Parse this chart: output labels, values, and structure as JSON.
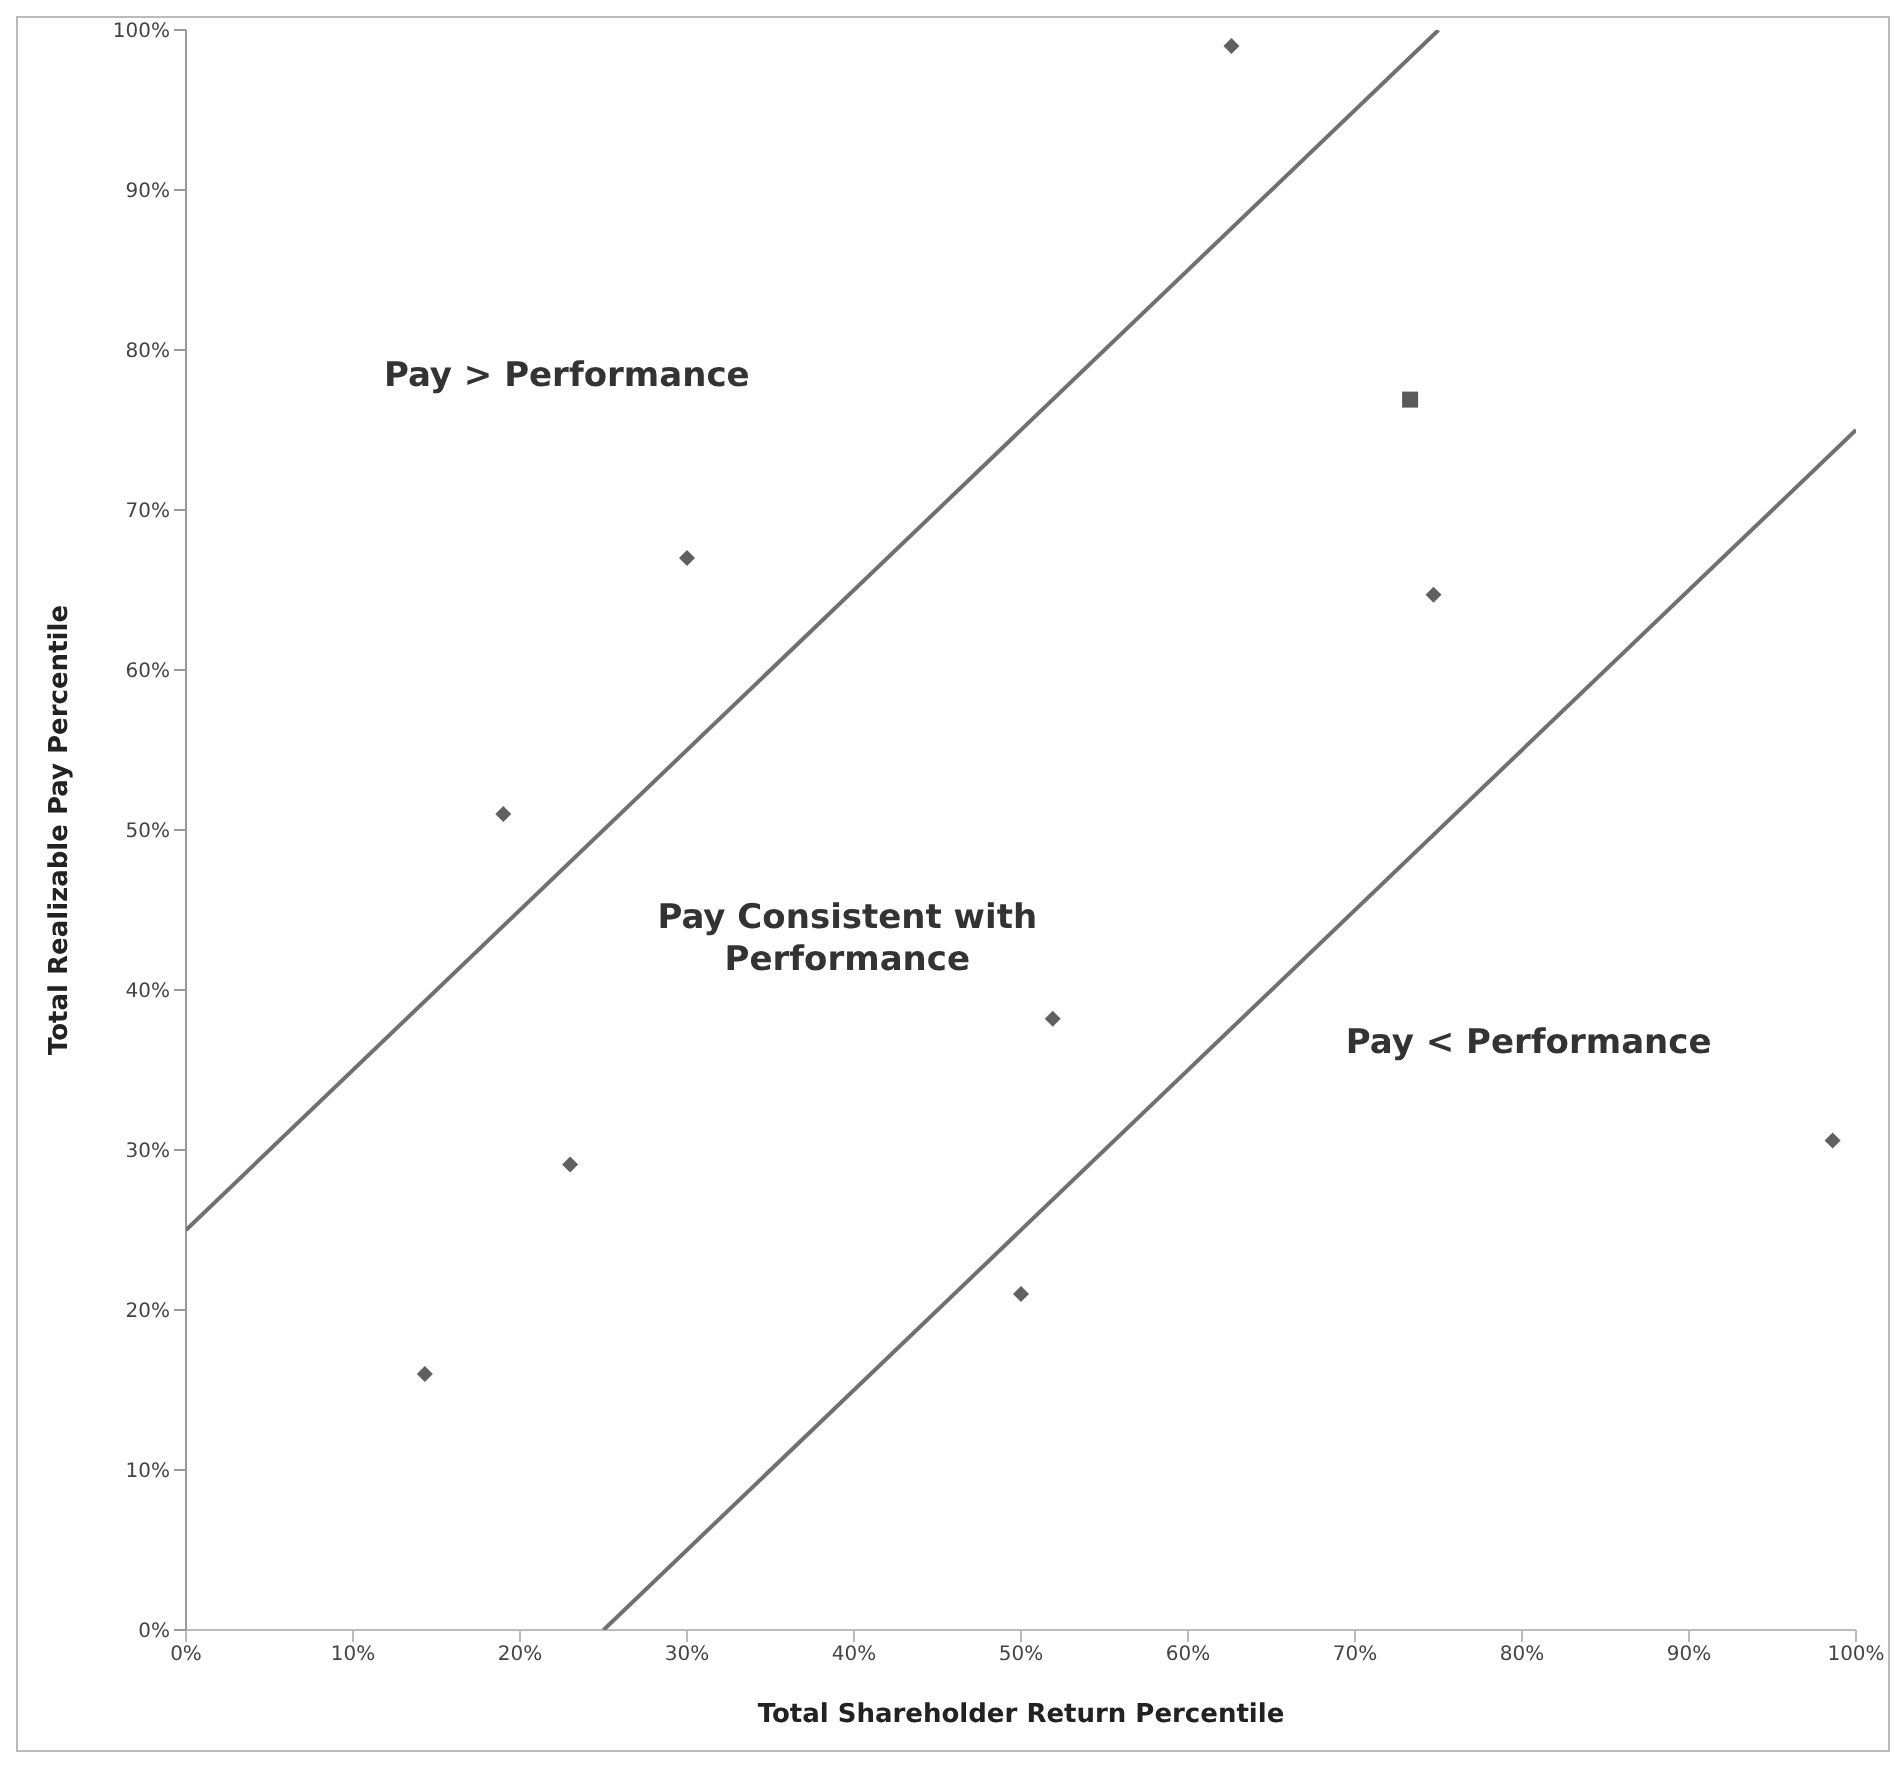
{
  "chart_data": {
    "type": "scatter",
    "xlabel": "Total Shareholder Return Percentile",
    "ylabel": "Total Realizable Pay  Percentile",
    "xlim": [
      0,
      100
    ],
    "ylim": [
      0,
      100
    ],
    "xticks": [
      {
        "value": 0,
        "label": "0%"
      },
      {
        "value": 10,
        "label": "10%"
      },
      {
        "value": 20,
        "label": "20%"
      },
      {
        "value": 30,
        "label": "30%"
      },
      {
        "value": 40,
        "label": "40%"
      },
      {
        "value": 50,
        "label": "50%"
      },
      {
        "value": 60,
        "label": "60%"
      },
      {
        "value": 70,
        "label": "70%"
      },
      {
        "value": 80,
        "label": "80%"
      },
      {
        "value": 90,
        "label": "90%"
      },
      {
        "value": 100,
        "label": "100%"
      }
    ],
    "yticks": [
      {
        "value": 0,
        "label": "0%"
      },
      {
        "value": 10,
        "label": "10%"
      },
      {
        "value": 20,
        "label": "20%"
      },
      {
        "value": 30,
        "label": "30%"
      },
      {
        "value": 40,
        "label": "40%"
      },
      {
        "value": 50,
        "label": "50%"
      },
      {
        "value": 60,
        "label": "60%"
      },
      {
        "value": 70,
        "label": "70%"
      },
      {
        "value": 80,
        "label": "80%"
      },
      {
        "value": 90,
        "label": "90%"
      },
      {
        "value": 100,
        "label": "100%"
      }
    ],
    "series": [
      {
        "marker": "diamond",
        "color": "#606060",
        "x": [
          19,
          30,
          62.6,
          14.3,
          23,
          51.9,
          50,
          98.6,
          74.7
        ],
        "values": [
          51,
          67,
          99,
          16,
          29.1,
          38.2,
          21,
          30.6,
          64.7
        ]
      },
      {
        "marker": "square",
        "color": "#5a5a5a",
        "x": [
          73.3
        ],
        "values": [
          76.9
        ]
      },
      {
        "type": "line",
        "marker": "none",
        "color": "#707070",
        "x": [
          0,
          75
        ],
        "values": [
          25,
          100
        ]
      },
      {
        "type": "line",
        "marker": "none",
        "color": "#707070",
        "x": [
          25,
          100
        ],
        "values": [
          0,
          75
        ]
      }
    ],
    "annotations": [
      "Pay > Performance",
      "Pay Consistent with\nPerformance",
      "Pay < Performance"
    ],
    "grid": false,
    "legend": false
  }
}
